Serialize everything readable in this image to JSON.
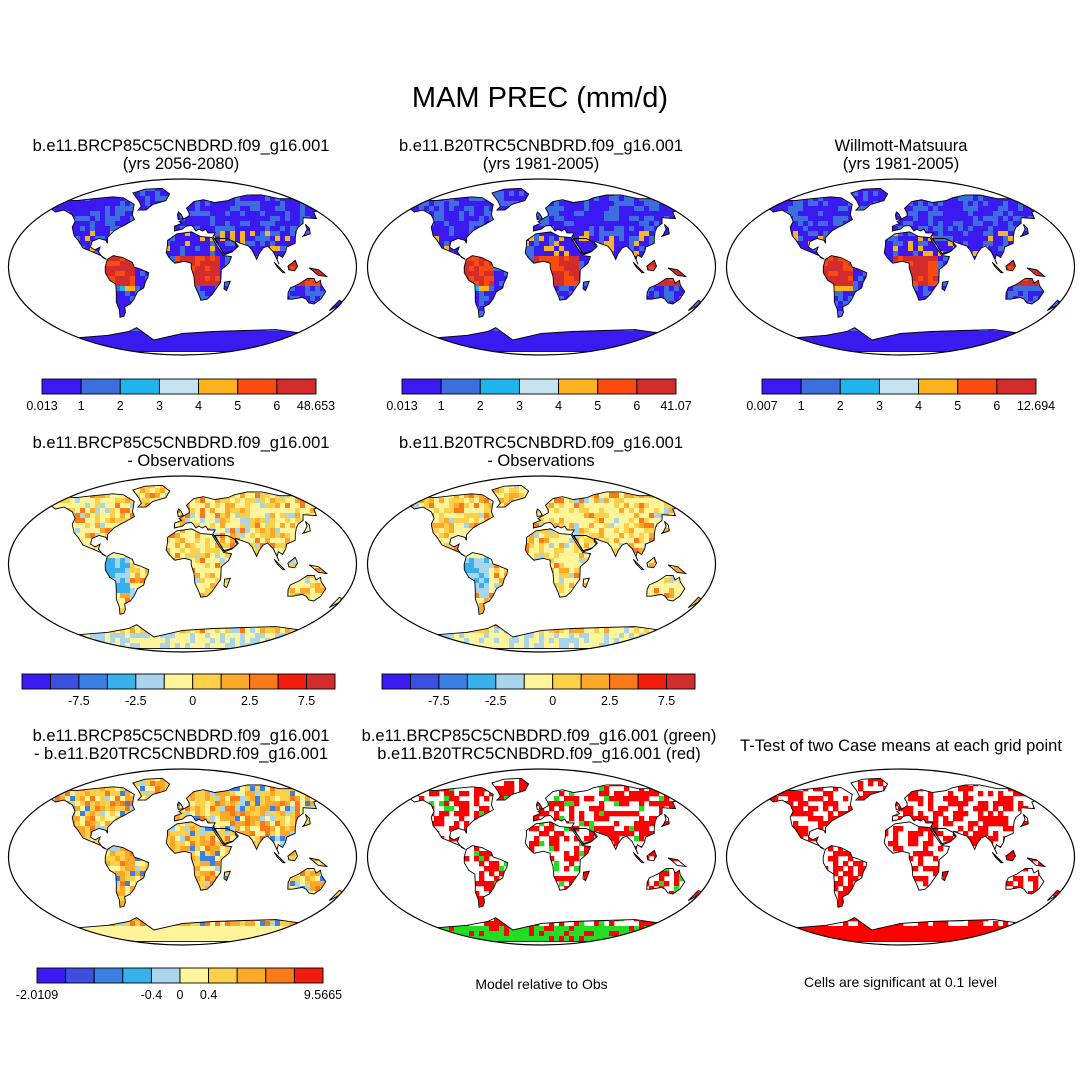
{
  "title": "MAM PREC (mm/d)",
  "colors": {
    "abs": [
      "#3a1af0",
      "#3c6ee0",
      "#20b4ee",
      "#c4e4f2",
      "#fbb41e",
      "#fb4a10",
      "#d22c2c"
    ],
    "diff": [
      "#3a1af0",
      "#3b4fe0",
      "#3a80e4",
      "#38b0ec",
      "#a8d4ec",
      "#fff49a",
      "#fdd04a",
      "#fca828",
      "#fa7a1a",
      "#f21c0c",
      "#d22c2c"
    ],
    "red": "#ff0000",
    "green": "#22dd22",
    "land_outline": "#000000"
  },
  "row1": [
    {
      "title1": "b.e11.BRCP85C5CNBDRD.f09_g16.001",
      "title2": "(yrs 2056-2080)",
      "labels": [
        "0.013",
        "1",
        "2",
        "3",
        "4",
        "5",
        "6",
        "48.653"
      ]
    },
    {
      "title1": "b.e11.B20TRC5CNBDRD.f09_g16.001",
      "title2": "(yrs 1981-2005)",
      "labels": [
        "0.013",
        "1",
        "2",
        "3",
        "4",
        "5",
        "6",
        "41.07"
      ]
    },
    {
      "title1": "Willmott-Matsuura",
      "title2": "(yrs 1981-2005)",
      "labels": [
        "0.007",
        "1",
        "2",
        "3",
        "4",
        "5",
        "6",
        "12.694"
      ]
    }
  ],
  "row2": [
    {
      "title1": "b.e11.BRCP85C5CNBDRD.f09_g16.001",
      "title2": "- Observations",
      "labels": [
        "-7.5",
        "-2.5",
        "0",
        "2.5",
        "7.5"
      ]
    },
    {
      "title1": "b.e11.B20TRC5CNBDRD.f09_g16.001",
      "title2": "- Observations",
      "labels": [
        "-7.5",
        "-2.5",
        "0",
        "2.5",
        "7.5"
      ]
    }
  ],
  "row3": [
    {
      "title1": "b.e11.BRCP85C5CNBDRD.f09_g16.001",
      "title2": "- b.e11.B20TRC5CNBDRD.f09_g16.001",
      "labels": [
        "-2.0109",
        "-0.4",
        "0",
        "0.4",
        "9.5665"
      ]
    },
    {
      "title1": "b.e11.BRCP85C5CNBDRD.f09_g16.001 (green)",
      "title2": "b.e11.B20TRC5CNBDRD.f09_g16.001 (red)",
      "note": "Model relative to Obs"
    },
    {
      "title1": "T-Test of two Case means at each grid point",
      "note": "Cells are significant at 0.1 level"
    }
  ]
}
